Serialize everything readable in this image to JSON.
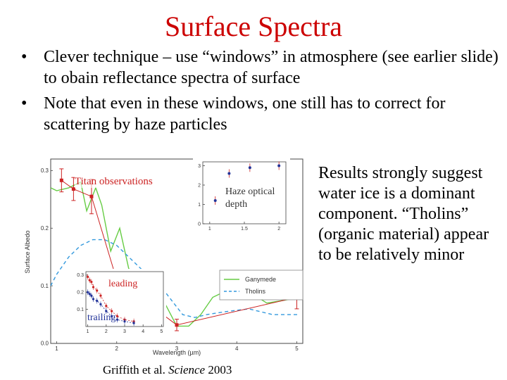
{
  "slide": {
    "title": "Surface Spectra",
    "bullets": [
      "Clever technique – use “windows” in atmosphere (see earlier slide) to obain reflectance spectra of surface",
      "Note that even in these windows, one still has to correct for scattering by haze particles"
    ],
    "bullet_symbol": "•",
    "results_text": "Results strongly suggest water ice is a dominant component. “Tholins” (organic material) appear to be relatively minor",
    "caption_prefix": "Griffith et al. ",
    "caption_journal": "Science",
    "caption_year": " 2003"
  },
  "figure": {
    "annotations": {
      "titan": "Titan observations",
      "haze": "Haze optical depth",
      "leading": "leading",
      "trailing": "trailing"
    },
    "colors": {
      "titan": "#cc2222",
      "ganymede": "#66cc44",
      "tholins": "#3399dd",
      "inset_leading": "#cc2222",
      "inset_trailing": "#223399"
    }
  },
  "chart_data": [
    {
      "type": "line",
      "xlabel": "Wavelength (µm)",
      "ylabel": "Surface Albedo",
      "xlim": [
        0.9,
        5.1
      ],
      "ylim": [
        0,
        0.32
      ],
      "xticks": [
        "1",
        "2",
        "3",
        "4",
        "5"
      ],
      "yticks": [
        "0.0",
        "0.1",
        "0.2",
        "0.3"
      ],
      "legend_position": "bottom-right",
      "series": [
        {
          "name": "Ganymede",
          "points": [
            [
              0.9,
              0.27
            ],
            [
              1.0,
              0.265
            ],
            [
              1.2,
              0.27
            ],
            [
              1.4,
              0.28
            ],
            [
              1.5,
              0.23
            ],
            [
              1.65,
              0.27
            ],
            [
              1.75,
              0.24
            ],
            [
              1.9,
              0.16
            ],
            [
              2.05,
              0.2
            ],
            [
              2.2,
              0.13
            ],
            [
              2.4,
              0.11
            ],
            [
              2.6,
              0.09
            ],
            [
              2.8,
              0.07
            ],
            [
              3.0,
              0.03
            ],
            [
              3.2,
              0.03
            ],
            [
              3.4,
              0.05
            ],
            [
              3.6,
              0.08
            ],
            [
              3.8,
              0.09
            ],
            [
              4.0,
              0.1
            ],
            [
              4.2,
              0.09
            ],
            [
              4.5,
              0.07
            ],
            [
              4.8,
              0.075
            ],
            [
              5.05,
              0.08
            ]
          ]
        },
        {
          "name": "Tholins",
          "points": [
            [
              0.9,
              0.1
            ],
            [
              1.0,
              0.12
            ],
            [
              1.2,
              0.15
            ],
            [
              1.4,
              0.17
            ],
            [
              1.6,
              0.18
            ],
            [
              1.8,
              0.18
            ],
            [
              2.0,
              0.17
            ],
            [
              2.2,
              0.15
            ],
            [
              2.4,
              0.13
            ],
            [
              2.6,
              0.11
            ],
            [
              2.8,
              0.09
            ],
            [
              2.95,
              0.07
            ],
            [
              3.1,
              0.05
            ],
            [
              3.3,
              0.045
            ],
            [
              3.5,
              0.05
            ],
            [
              3.8,
              0.055
            ],
            [
              4.2,
              0.06
            ],
            [
              4.6,
              0.05
            ],
            [
              5.05,
              0.05
            ]
          ]
        },
        {
          "name": "Titan observations",
          "points": [
            [
              1.08,
              0.283
            ],
            [
              1.28,
              0.268
            ],
            [
              1.58,
              0.255
            ],
            [
              2.0,
              0.11
            ],
            [
              3.0,
              0.032
            ],
            [
              5.0,
              0.08
            ]
          ],
          "errors": [
            0.02,
            0.02,
            0.03,
            0.015,
            0.01,
            0.02
          ]
        }
      ]
    },
    {
      "type": "scatter",
      "title": "Haze optical depth",
      "xlim": [
        0.9,
        2.1
      ],
      "ylim": [
        0,
        3.2
      ],
      "xticks": [
        "1",
        "1.5",
        "2"
      ],
      "yticks": [
        "0",
        "1",
        "2",
        "3"
      ],
      "series": [
        {
          "name": "Haze optical depth",
          "x": [
            1.08,
            1.28,
            1.58,
            2.0
          ],
          "y": [
            1.2,
            2.6,
            2.9,
            3.0
          ]
        }
      ]
    },
    {
      "type": "scatter",
      "xlim": [
        0.9,
        5.1
      ],
      "ylim": [
        0,
        0.32
      ],
      "xticks": [
        "1",
        "2",
        "3",
        "4",
        "5"
      ],
      "yticks": [
        "0.1",
        "0.2",
        "0.3"
      ],
      "series": [
        {
          "name": "leading",
          "x": [
            1.0,
            1.1,
            1.2,
            1.3,
            1.5,
            1.7,
            2.0,
            2.3,
            2.6,
            3.0,
            3.5
          ],
          "y": [
            0.29,
            0.27,
            0.26,
            0.23,
            0.21,
            0.18,
            0.12,
            0.09,
            0.06,
            0.04,
            0.03
          ]
        },
        {
          "name": "trailing",
          "x": [
            1.0,
            1.1,
            1.2,
            1.3,
            1.5,
            1.7,
            2.0,
            2.3,
            2.6,
            3.0,
            3.5
          ],
          "y": [
            0.2,
            0.19,
            0.18,
            0.16,
            0.15,
            0.13,
            0.09,
            0.06,
            0.04,
            0.03,
            0.02
          ]
        }
      ]
    }
  ]
}
